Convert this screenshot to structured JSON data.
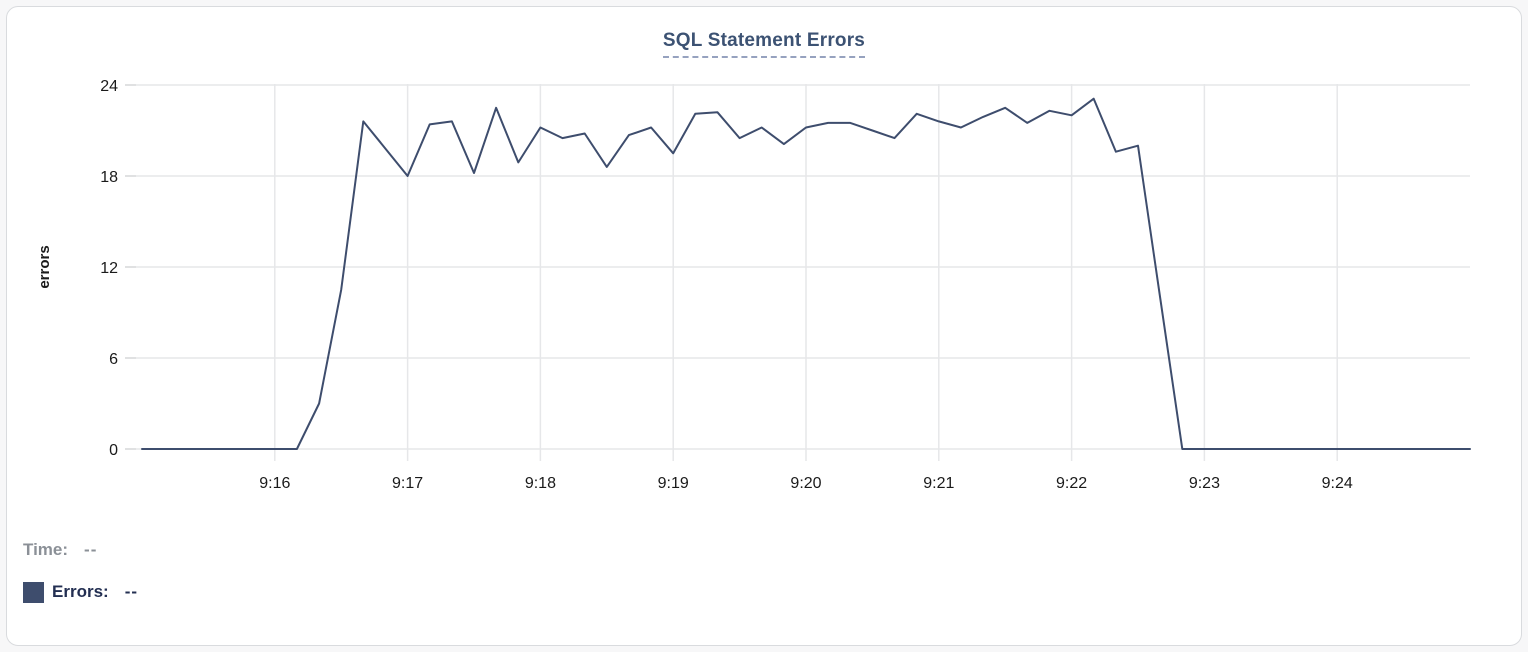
{
  "card": {
    "background": "#ffffff",
    "border_color": "#d9dbde"
  },
  "chart": {
    "title": "SQL Statement Errors",
    "title_color": "#3c5273",
    "title_underline_color": "#96a2bf",
    "line_color": "#3e4d6d",
    "grid_color": "#e6e7e9",
    "axis_tick_color": "#d6d7d9",
    "tick_label_color": "#1a1a1a",
    "ylabel": "errors"
  },
  "chart_data": {
    "type": "line",
    "title": "SQL Statement Errors",
    "xlabel": "",
    "ylabel": "errors",
    "ylim": [
      0,
      24
    ],
    "yticks": [
      0,
      6,
      12,
      18,
      24
    ],
    "xticks": [
      "9:16",
      "9:17",
      "9:18",
      "9:19",
      "9:20",
      "9:21",
      "9:22",
      "9:23",
      "9:24"
    ],
    "grid": true,
    "legend_position": "bottom-left",
    "series_name": "Errors",
    "start_time": "9:15:00",
    "end_time": "9:25:00",
    "sample_interval_seconds": 10,
    "values": [
      0,
      0,
      0,
      0,
      0,
      0,
      0,
      0,
      3,
      10.5,
      21.6,
      19.8,
      18,
      21.4,
      21.6,
      18.2,
      22.5,
      18.9,
      21.2,
      20.5,
      20.8,
      18.6,
      20.7,
      21.2,
      19.5,
      22.1,
      22.2,
      20.5,
      21.2,
      20.1,
      21.2,
      21.5,
      21.5,
      21,
      20.5,
      22.1,
      21.6,
      21.2,
      21.9,
      22.5,
      21.5,
      22.3,
      22,
      23.1,
      19.6,
      20,
      10,
      0,
      0,
      0,
      0,
      0,
      0,
      0,
      0,
      0,
      0,
      0,
      0,
      0,
      0
    ]
  },
  "tooltip_legend": {
    "time_label": "Time:",
    "time_value": "--",
    "errors_label": "Errors:",
    "errors_value": "--",
    "swatch_color": "#3e4d6d"
  }
}
